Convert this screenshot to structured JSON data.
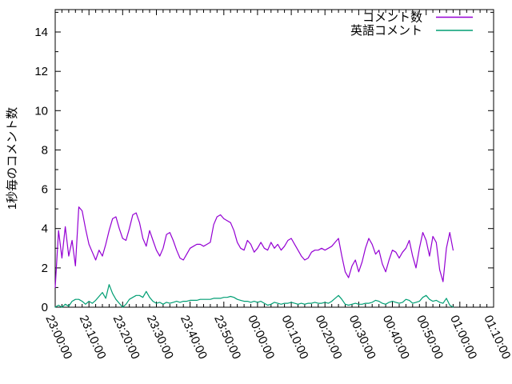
{
  "page": {
    "background": "#ffffff",
    "axis_color": "#000000"
  },
  "chart_data": {
    "type": "line",
    "title": "",
    "xlabel": "",
    "ylabel": "1秒毎のコメント数",
    "grid": false,
    "legend_position": "top-right",
    "ylim": [
      0,
      15.14
    ],
    "y_major_step": 2,
    "y_minor_step": 1,
    "y_tick_labels": [
      "0",
      "2",
      "4",
      "6",
      "8",
      "10",
      "12",
      "14"
    ],
    "x_total_min": 130,
    "x_tick_interval_min": 10,
    "x_minor_interval_min": 2,
    "sample_interval_min": 1,
    "x_tick_labels": [
      "23:00:00",
      "23:10:00",
      "23:20:00",
      "23:30:00",
      "23:40:00",
      "23:50:00",
      "00:00:00",
      "00:10:00",
      "00:20:00",
      "00:30:00",
      "00:40:00",
      "00:50:00",
      "01:00:00",
      "01:10:00"
    ],
    "series": [
      {
        "name": "コメント数",
        "color": "#9400d3",
        "values": [
          1.0,
          3.9,
          2.5,
          4.1,
          2.6,
          3.4,
          2.1,
          5.1,
          4.9,
          4.0,
          3.2,
          2.8,
          2.4,
          2.9,
          2.6,
          3.2,
          3.9,
          4.5,
          4.6,
          4.0,
          3.5,
          3.4,
          4.0,
          4.7,
          4.8,
          4.3,
          3.5,
          3.1,
          3.9,
          3.4,
          2.9,
          2.6,
          3.0,
          3.7,
          3.8,
          3.4,
          2.9,
          2.5,
          2.4,
          2.7,
          3.0,
          3.1,
          3.2,
          3.2,
          3.1,
          3.2,
          3.3,
          4.2,
          4.6,
          4.7,
          4.5,
          4.4,
          4.3,
          3.9,
          3.3,
          3.0,
          2.9,
          3.4,
          3.2,
          2.8,
          3.0,
          3.3,
          3.0,
          2.9,
          3.3,
          3.0,
          3.2,
          2.9,
          3.1,
          3.4,
          3.5,
          3.2,
          2.9,
          2.6,
          2.4,
          2.5,
          2.8,
          2.9,
          2.9,
          3.0,
          2.9,
          3.0,
          3.1,
          3.3,
          3.5,
          2.6,
          1.8,
          1.5,
          2.1,
          2.4,
          1.8,
          2.3,
          3.0,
          3.5,
          3.2,
          2.7,
          2.9,
          2.2,
          1.8,
          2.4,
          2.9,
          2.8,
          2.5,
          2.8,
          3.0,
          3.4,
          2.6,
          2.0,
          3.0,
          3.8,
          3.4,
          2.6,
          3.6,
          3.3,
          1.9,
          1.3,
          3.0,
          3.8,
          2.9
        ]
      },
      {
        "name": "英語コメント",
        "color": "#009e73",
        "values": [
          0.0,
          0.1,
          0.0,
          0.15,
          0.05,
          0.3,
          0.4,
          0.4,
          0.3,
          0.15,
          0.3,
          0.2,
          0.35,
          0.55,
          0.75,
          0.45,
          1.15,
          0.7,
          0.4,
          0.2,
          0.0,
          0.15,
          0.4,
          0.5,
          0.6,
          0.6,
          0.5,
          0.8,
          0.5,
          0.3,
          0.2,
          0.25,
          0.15,
          0.25,
          0.2,
          0.25,
          0.3,
          0.25,
          0.3,
          0.3,
          0.35,
          0.35,
          0.35,
          0.4,
          0.4,
          0.4,
          0.4,
          0.45,
          0.45,
          0.45,
          0.5,
          0.5,
          0.55,
          0.5,
          0.4,
          0.35,
          0.3,
          0.3,
          0.25,
          0.3,
          0.25,
          0.3,
          0.2,
          0.1,
          0.15,
          0.25,
          0.2,
          0.15,
          0.2,
          0.2,
          0.25,
          0.2,
          0.15,
          0.2,
          0.15,
          0.2,
          0.2,
          0.25,
          0.2,
          0.2,
          0.25,
          0.2,
          0.3,
          0.45,
          0.6,
          0.4,
          0.15,
          0.1,
          0.15,
          0.2,
          0.15,
          0.15,
          0.2,
          0.2,
          0.25,
          0.35,
          0.3,
          0.2,
          0.15,
          0.25,
          0.3,
          0.25,
          0.2,
          0.25,
          0.4,
          0.35,
          0.2,
          0.25,
          0.3,
          0.5,
          0.6,
          0.4,
          0.3,
          0.35,
          0.25,
          0.2,
          0.45,
          0.1,
          0.0
        ]
      }
    ]
  }
}
